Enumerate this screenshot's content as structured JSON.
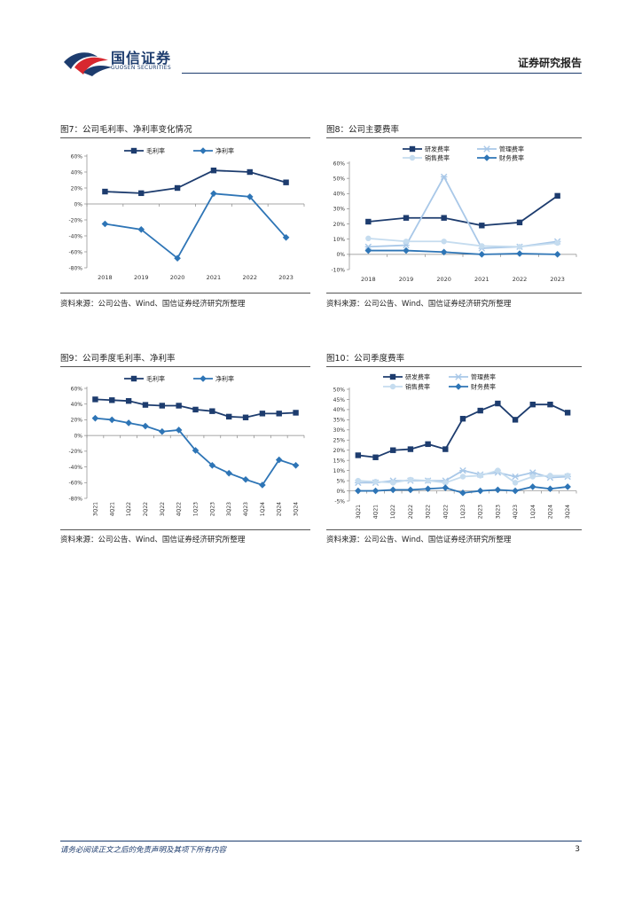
{
  "header": {
    "brand_cn": "国信证券",
    "brand_en": "GUOSEN SECURITIES",
    "report_type": "证券研究报告",
    "colors": {
      "brand": "#1d3c6e",
      "logo_red": "#d7282f"
    }
  },
  "figures": [
    {
      "title": "图7：公司毛利率、净利率变化情况",
      "source": "资料来源：公司公告、Wind、国信证券经济研究所整理"
    },
    {
      "title": "图8：公司主要费率",
      "source": "资料来源：公司公告、Wind、国信证券经济研究所整理"
    },
    {
      "title": "图9：公司季度毛利率、净利率",
      "source": "资料来源：公司公告、Wind、国信证券经济研究所整理"
    },
    {
      "title": "图10：公司季度费率",
      "source": "资料来源：公司公告、Wind、国信证券经济研究所整理"
    }
  ],
  "chart_data": [
    {
      "type": "line",
      "x": [
        "2018",
        "2019",
        "2020",
        "2021",
        "2022",
        "2023"
      ],
      "ylim": [
        -80,
        60
      ],
      "yticks": [
        "60%",
        "40%",
        "20%",
        "0%",
        "-20%",
        "-40%",
        "-60%",
        "-80%"
      ],
      "ytick_values": [
        60,
        40,
        20,
        0,
        -20,
        -40,
        -60,
        -80
      ],
      "legend_position": "top",
      "series": [
        {
          "name": "毛利率",
          "values": [
            15.5,
            13.5,
            20,
            42,
            40,
            27
          ],
          "color": "#1d3c6e",
          "marker": "square"
        },
        {
          "name": "净利率",
          "values": [
            -25,
            -32,
            -68,
            13,
            9,
            -42
          ],
          "color": "#2e75b6",
          "marker": "diamond"
        }
      ]
    },
    {
      "type": "line",
      "x": [
        "2018",
        "2019",
        "2020",
        "2021",
        "2022",
        "2023"
      ],
      "ylim": [
        -10,
        60
      ],
      "yticks": [
        "60%",
        "50%",
        "40%",
        "30%",
        "20%",
        "10%",
        "0%",
        "-10%"
      ],
      "ytick_values": [
        60,
        50,
        40,
        30,
        20,
        10,
        0,
        -10
      ],
      "legend_position": "top",
      "series": [
        {
          "name": "研发费率",
          "values": [
            21.5,
            24,
            24,
            19,
            21,
            38.5
          ],
          "color": "#1d3c6e",
          "marker": "square"
        },
        {
          "name": "管理费率",
          "values": [
            5,
            6,
            51,
            4,
            5,
            8.5
          ],
          "color": "#a9c8e8",
          "marker": "asterisk"
        },
        {
          "name": "销售费率",
          "values": [
            10.5,
            8.5,
            8.5,
            5.5,
            5,
            7.5
          ],
          "color": "#c5dcef",
          "marker": "circle"
        },
        {
          "name": "财务费率",
          "values": [
            2.5,
            2.5,
            1.5,
            0,
            0.5,
            0
          ],
          "color": "#2e75b6",
          "marker": "diamond"
        }
      ]
    },
    {
      "type": "line",
      "x": [
        "3Q21",
        "4Q21",
        "1Q22",
        "2Q22",
        "3Q22",
        "4Q22",
        "1Q23",
        "2Q23",
        "3Q23",
        "4Q23",
        "1Q24",
        "2Q24",
        "3Q24"
      ],
      "ylim": [
        -80,
        60
      ],
      "yticks": [
        "60%",
        "40%",
        "20%",
        "0%",
        "-20%",
        "-40%",
        "-60%",
        "-80%"
      ],
      "ytick_values": [
        60,
        40,
        20,
        0,
        -20,
        -40,
        -60,
        -80
      ],
      "legend_position": "top",
      "series": [
        {
          "name": "毛利率",
          "values": [
            46,
            45,
            44,
            39,
            38,
            38,
            33,
            31,
            24,
            23,
            28,
            28,
            29
          ],
          "color": "#1d3c6e",
          "marker": "square"
        },
        {
          "name": "净利率",
          "values": [
            22,
            20,
            16,
            12,
            5,
            7,
            -19,
            -38,
            -48,
            -56,
            -63,
            -31,
            -38
          ],
          "color": "#2e75b6",
          "marker": "diamond"
        }
      ]
    },
    {
      "type": "line",
      "x": [
        "3Q21",
        "4Q21",
        "1Q22",
        "2Q22",
        "3Q22",
        "4Q22",
        "1Q23",
        "2Q23",
        "3Q23",
        "4Q23",
        "1Q24",
        "2Q24",
        "3Q24"
      ],
      "ylim": [
        -5,
        50
      ],
      "yticks": [
        "50%",
        "45%",
        "40%",
        "35%",
        "30%",
        "25%",
        "20%",
        "15%",
        "10%",
        "5%",
        "0%",
        "-5%"
      ],
      "ytick_values": [
        50,
        45,
        40,
        35,
        30,
        25,
        20,
        15,
        10,
        5,
        0,
        -5
      ],
      "legend_position": "top",
      "series": [
        {
          "name": "研发费率",
          "values": [
            17.5,
            16.5,
            20,
            20.5,
            23,
            20.5,
            35.5,
            39.5,
            43,
            35,
            42.5,
            42.5,
            38.5
          ],
          "color": "#1d3c6e",
          "marker": "square"
        },
        {
          "name": "管理费率",
          "values": [
            4,
            4,
            5,
            5,
            5,
            5,
            10,
            8,
            9,
            7,
            9,
            6.5,
            7
          ],
          "color": "#a9c8e8",
          "marker": "asterisk"
        },
        {
          "name": "销售费率",
          "values": [
            5,
            4.5,
            4,
            5.5,
            5,
            4,
            7,
            7.5,
            10,
            4,
            7,
            7.5,
            7.5
          ],
          "color": "#c5dcef",
          "marker": "circle"
        },
        {
          "name": "财务费率",
          "values": [
            0,
            0,
            0.5,
            0.5,
            1,
            1.5,
            -1,
            0,
            0.5,
            0,
            2,
            1,
            2
          ],
          "color": "#2e75b6",
          "marker": "diamond"
        }
      ]
    }
  ],
  "footer": {
    "disclaimer": "请务必阅读正文之后的免责声明及其项下所有内容",
    "page_number": "3"
  }
}
